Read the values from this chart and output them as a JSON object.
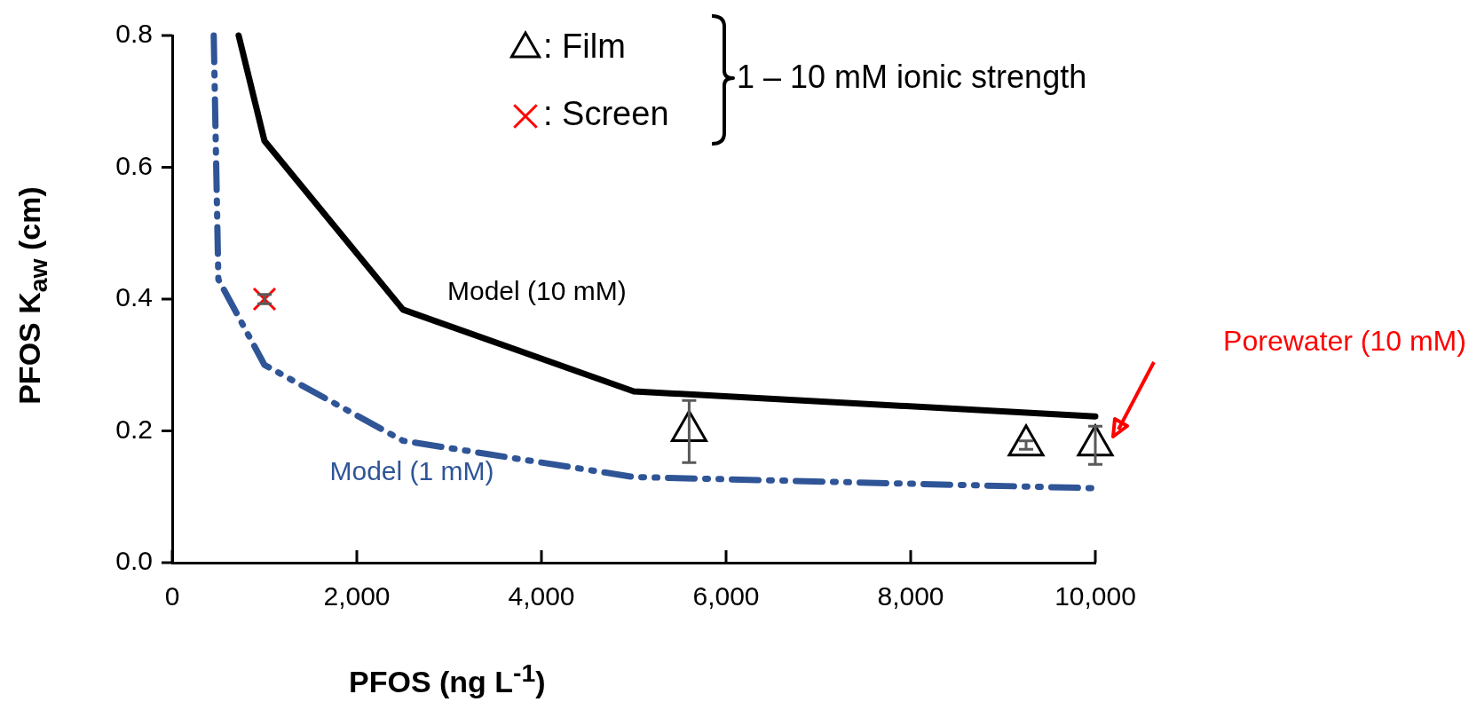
{
  "chart_data": {
    "type": "line",
    "xlabel": "PFOS (ng L$^{-1}$)",
    "ylabel": "PFOS K$_{aw}$ (cm)",
    "xlim": [
      0,
      10000
    ],
    "xticks": [
      {
        "value": 0,
        "label": "0"
      },
      {
        "value": 2000,
        "label": "2,000"
      },
      {
        "value": 4000,
        "label": "4,000"
      },
      {
        "value": 6000,
        "label": "6,000"
      },
      {
        "value": 8000,
        "label": "8,000"
      },
      {
        "value": 10000,
        "label": "10,000"
      }
    ],
    "ylim": [
      0,
      0.8
    ],
    "yticks": [
      {
        "value": 0,
        "label": "0.0"
      },
      {
        "value": 0.2,
        "label": "0.2"
      },
      {
        "value": 0.4,
        "label": "0.4"
      },
      {
        "value": 0.6,
        "label": "0.6"
      },
      {
        "value": 0.8,
        "label": "0.8"
      }
    ],
    "grid": false,
    "legend": "top",
    "annotations": [
      "1 – 10 mM ionic strength",
      "Porewater (10 mM)",
      "Model (10 mM)",
      "Model (1 mM)"
    ],
    "series": [
      {
        "color": "#000000",
        "x": [
          720,
          1000,
          2500,
          5000,
          10000
        ],
        "values": [
          0.8,
          0.64,
          0.384,
          0.26,
          0.222
        ],
        "marker": "none",
        "line_style": "solid"
      },
      {
        "color": "#2f5597",
        "x": [
          450,
          500,
          1000,
          2500,
          5000,
          10000
        ],
        "values": [
          0.8,
          0.43,
          0.3,
          0.185,
          0.13,
          0.113
        ],
        "marker": "none",
        "line_style": "dashed"
      },
      {
        "name": ": Film",
        "type": "scatter",
        "color": "#000000",
        "x": [
          5600,
          9250,
          10000
        ],
        "values": [
          0.2,
          0.178,
          0.178
        ],
        "errors": [
          [
            0.152,
            0.246
          ],
          [
            0.172,
            0.185
          ],
          [
            0.149,
            0.207
          ]
        ],
        "marker": "triangle"
      },
      {
        "name": ": Screen",
        "type": "scatter",
        "color": "#ff0000",
        "x": [
          1000
        ],
        "values": [
          0.4
        ],
        "errors": [
          [
            0.393,
            0.407
          ]
        ],
        "marker": "cross"
      }
    ]
  }
}
